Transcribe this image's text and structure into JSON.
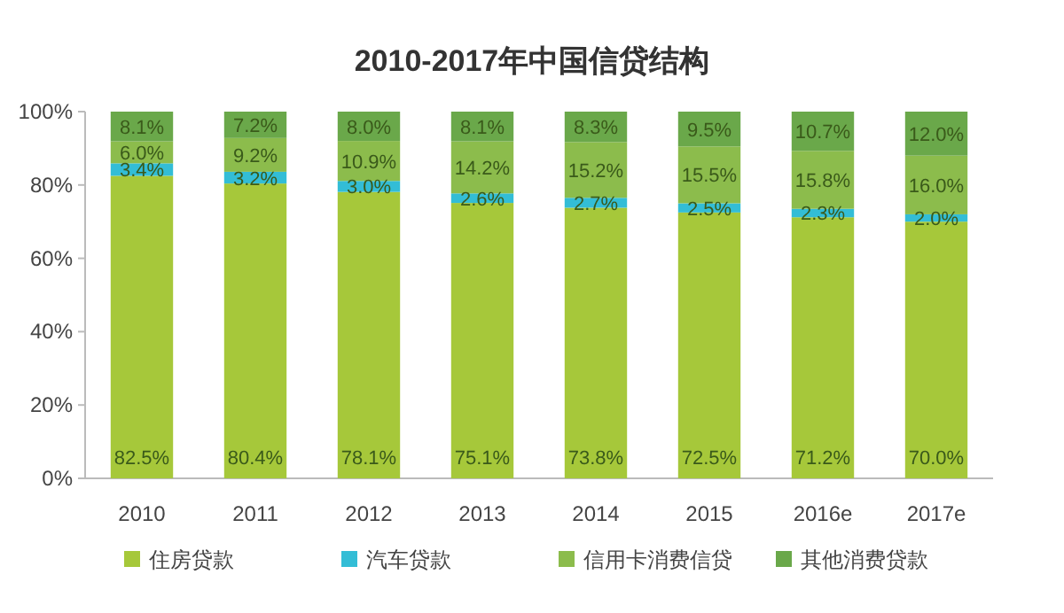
{
  "chart_data": {
    "type": "bar",
    "stacked": true,
    "title": "2010-2017年中国信贷结构",
    "categories": [
      "2010",
      "2011",
      "2012",
      "2013",
      "2014",
      "2015",
      "2016e",
      "2017e"
    ],
    "series": [
      {
        "name": "住房贷款",
        "color": "#a6c83a",
        "values": [
          82.5,
          80.4,
          78.1,
          75.1,
          73.8,
          72.5,
          71.2,
          70.0
        ],
        "value_labels": [
          "82.5%",
          "80.4%",
          "78.1%",
          "75.1%",
          "73.8%",
          "72.5%",
          "71.2%",
          "70.0%"
        ]
      },
      {
        "name": "汽车贷款",
        "color": "#33bdd6",
        "values": [
          3.4,
          3.2,
          3.0,
          2.6,
          2.7,
          2.5,
          2.3,
          2.0
        ],
        "value_labels": [
          "3.4%",
          "3.2%",
          "3.0%",
          "2.6%",
          "2.7%",
          "2.5%",
          "2.3%",
          "2.0%"
        ]
      },
      {
        "name": "信用卡消费信贷",
        "color": "#8cbc4c",
        "values": [
          6.0,
          9.2,
          10.9,
          14.2,
          15.2,
          15.5,
          15.8,
          16.0
        ],
        "value_labels": [
          "6.0%",
          "9.2%",
          "10.9%",
          "14.2%",
          "15.2%",
          "15.5%",
          "15.8%",
          "16.0%"
        ]
      },
      {
        "name": "其他消费贷款",
        "color": "#6aa84a",
        "values": [
          8.1,
          7.2,
          8.0,
          8.1,
          8.3,
          9.5,
          10.7,
          12.0
        ],
        "value_labels": [
          "8.1%",
          "7.2%",
          "8.0%",
          "8.1%",
          "8.3%",
          "9.5%",
          "10.7%",
          "12.0%"
        ]
      }
    ],
    "ylim": [
      0,
      100
    ],
    "yticks": [
      {
        "value": 0,
        "label": "0%"
      },
      {
        "value": 20,
        "label": "20%"
      },
      {
        "value": 40,
        "label": "40%"
      },
      {
        "value": 60,
        "label": "60%"
      },
      {
        "value": 80,
        "label": "80%"
      },
      {
        "value": 100,
        "label": "100%"
      }
    ],
    "legend": "bottom"
  }
}
